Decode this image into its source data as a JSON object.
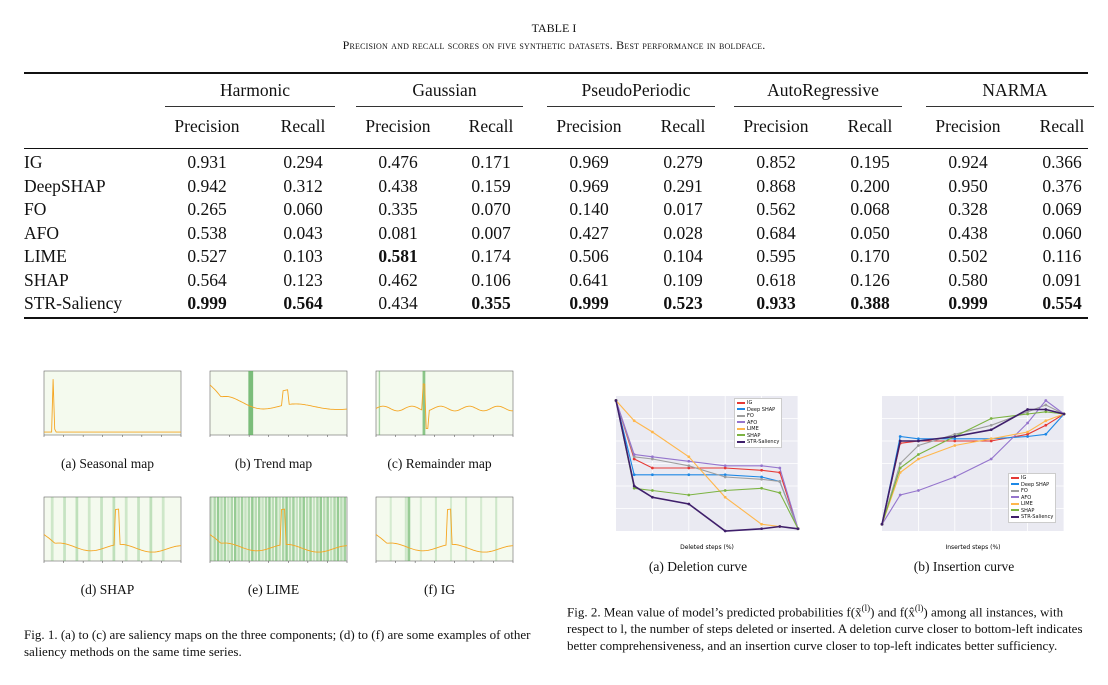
{
  "table": {
    "number": "TABLE I",
    "caption": "Precision and recall scores on five synthetic datasets. Best performance in boldface.",
    "groups": [
      "Harmonic",
      "Gaussian",
      "PseudoPeriodic",
      "AutoRegressive",
      "NARMA"
    ],
    "subheaders": [
      "Precision",
      "Recall"
    ],
    "rows": [
      {
        "method": "IG",
        "values": [
          "0.931",
          "0.294",
          "0.476",
          "0.171",
          "0.969",
          "0.279",
          "0.852",
          "0.195",
          "0.924",
          "0.366"
        ],
        "bold": []
      },
      {
        "method": "DeepSHAP",
        "values": [
          "0.942",
          "0.312",
          "0.438",
          "0.159",
          "0.969",
          "0.291",
          "0.868",
          "0.200",
          "0.950",
          "0.376"
        ],
        "bold": []
      },
      {
        "method": "FO",
        "values": [
          "0.265",
          "0.060",
          "0.335",
          "0.070",
          "0.140",
          "0.017",
          "0.562",
          "0.068",
          "0.328",
          "0.069"
        ],
        "bold": []
      },
      {
        "method": "AFO",
        "values": [
          "0.538",
          "0.043",
          "0.081",
          "0.007",
          "0.427",
          "0.028",
          "0.684",
          "0.050",
          "0.438",
          "0.060"
        ],
        "bold": []
      },
      {
        "method": "LIME",
        "values": [
          "0.527",
          "0.103",
          "0.581",
          "0.174",
          "0.506",
          "0.104",
          "0.595",
          "0.170",
          "0.502",
          "0.116"
        ],
        "bold": [
          2
        ]
      },
      {
        "method": "SHAP",
        "values": [
          "0.564",
          "0.123",
          "0.462",
          "0.106",
          "0.641",
          "0.109",
          "0.618",
          "0.126",
          "0.580",
          "0.091"
        ],
        "bold": []
      },
      {
        "method": "STR-Saliency",
        "values": [
          "0.999",
          "0.564",
          "0.434",
          "0.355",
          "0.999",
          "0.523",
          "0.933",
          "0.388",
          "0.999",
          "0.554"
        ],
        "bold": [
          0,
          1,
          3,
          4,
          5,
          6,
          7,
          8,
          9
        ]
      }
    ]
  },
  "fig1": {
    "subcaptions": [
      "(a) Seasonal map",
      "(b) Trend map",
      "(c) Remainder map",
      "(d) SHAP",
      "(e) LIME",
      "(f) IG"
    ],
    "caption": "Fig. 1.  (a) to (c) are saliency maps on the three components; (d) to (f) are some examples of other saliency methods on the same time series."
  },
  "fig2": {
    "subcaptions": [
      "(a) Deletion curve",
      "(b) Insertion curve"
    ],
    "caption_parts": {
      "line1": "Fig. 2.  Mean value of model’s predicted probabilities f(x̃",
      "sup1": "(l)",
      "mid": ") and f(x̂",
      "sup2": "(l)",
      "end": ")",
      "rest": "among all instances, with respect to l, the number of steps deleted or inserted. A deletion curve closer to bottom-left indicates better comprehensiveness, and an insertion curve closer to top-left indicates better sufficiency."
    },
    "legend": [
      "IG",
      "Deep SHAP",
      "FO",
      "AFO",
      "LIME",
      "SHAP",
      "STR-Saliency"
    ],
    "colors": [
      "#e53935",
      "#1e88e5",
      "#9e9e9e",
      "#9575cd",
      "#ffb74d",
      "#7cb342",
      "#3f1f6b"
    ],
    "xlabel_deletion": "Deleted steps (%)",
    "xlabel_insertion": "Inserted steps (%)",
    "chart_data": [
      {
        "type": "line",
        "x": [
          0,
          10,
          20,
          40,
          60,
          80,
          90,
          100
        ],
        "ylim": [
          0.3,
          0.9
        ],
        "series": [
          {
            "name": "IG",
            "values": [
              0.88,
              0.62,
              0.58,
              0.58,
              0.58,
              0.57,
              0.56,
              0.31
            ]
          },
          {
            "name": "Deep SHAP",
            "values": [
              0.88,
              0.55,
              0.55,
              0.55,
              0.55,
              0.54,
              0.52,
              0.31
            ]
          },
          {
            "name": "FO",
            "values": [
              0.88,
              0.63,
              0.62,
              0.59,
              0.54,
              0.53,
              0.52,
              0.31
            ]
          },
          {
            "name": "AFO",
            "values": [
              0.88,
              0.64,
              0.63,
              0.61,
              0.59,
              0.59,
              0.58,
              0.31
            ]
          },
          {
            "name": "LIME",
            "values": [
              0.88,
              0.79,
              0.74,
              0.63,
              0.45,
              0.33,
              0.32,
              0.31
            ]
          },
          {
            "name": "SHAP",
            "values": [
              0.88,
              0.49,
              0.48,
              0.46,
              0.48,
              0.49,
              0.47,
              0.31
            ]
          },
          {
            "name": "STR-Saliency",
            "values": [
              0.88,
              0.5,
              0.45,
              0.42,
              0.3,
              0.31,
              0.32,
              0.31
            ]
          }
        ]
      },
      {
        "type": "line",
        "x": [
          0,
          10,
          20,
          40,
          60,
          80,
          90,
          100
        ],
        "ylim": [
          0.3,
          0.9
        ],
        "series": [
          {
            "name": "IG",
            "values": [
              0.33,
              0.69,
              0.7,
              0.7,
              0.7,
              0.73,
              0.77,
              0.82
            ]
          },
          {
            "name": "Deep SHAP",
            "values": [
              0.33,
              0.72,
              0.71,
              0.71,
              0.71,
              0.72,
              0.73,
              0.82
            ]
          },
          {
            "name": "FO",
            "values": [
              0.33,
              0.6,
              0.68,
              0.73,
              0.77,
              0.83,
              0.86,
              0.82
            ]
          },
          {
            "name": "AFO",
            "values": [
              0.33,
              0.46,
              0.48,
              0.54,
              0.62,
              0.78,
              0.88,
              0.82
            ]
          },
          {
            "name": "LIME",
            "values": [
              0.33,
              0.56,
              0.62,
              0.68,
              0.71,
              0.74,
              0.79,
              0.82
            ]
          },
          {
            "name": "SHAP",
            "values": [
              0.33,
              0.58,
              0.64,
              0.72,
              0.8,
              0.82,
              0.83,
              0.82
            ]
          },
          {
            "name": "STR-Saliency",
            "values": [
              0.33,
              0.7,
              0.7,
              0.72,
              0.75,
              0.84,
              0.84,
              0.82
            ]
          }
        ]
      }
    ]
  }
}
